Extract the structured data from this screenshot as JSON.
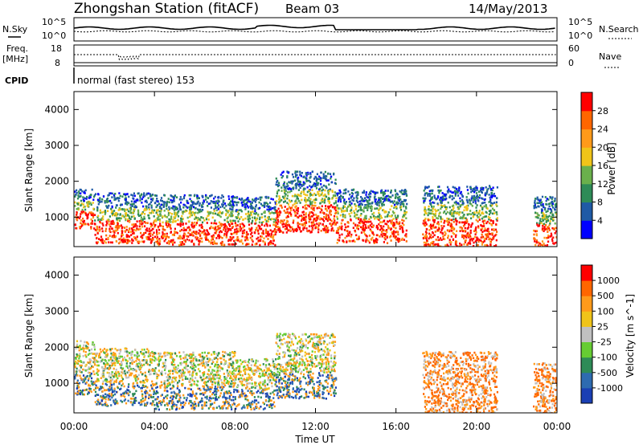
{
  "header": {
    "station": "Zhongshan Station (fitACF)",
    "beam": "Beam 03",
    "date": "14/May/2013"
  },
  "top_panels": {
    "nsky_label": "N.Sky",
    "nsky_top": "10^5",
    "nsky_bottom": "10^0",
    "nsearch_label": "N.Search",
    "nsearch_top": "10^5",
    "nsearch_bottom": "10^0",
    "freq_label": "Freq.",
    "freq_unit": "[MHz]",
    "freq_top": "18",
    "freq_bottom": "8",
    "nave_label": "Nave",
    "nave_top": "60",
    "nave_bottom": "0",
    "cpid_label": "CPID",
    "cpid_text": "normal (fast stereo) 153"
  },
  "chart_data": {
    "type": "heatmap",
    "x": {
      "label": "Time UT",
      "range_hours": [
        0,
        24
      ],
      "tick_hours": [
        0,
        4,
        8,
        12,
        16,
        20,
        24
      ],
      "tick_labels": [
        "00:00",
        "04:00",
        "08:00",
        "12:00",
        "16:00",
        "20:00",
        "00:00"
      ]
    },
    "panels": [
      {
        "name": "power",
        "ylabel": "Slant Range [km]",
        "ylim": [
          180,
          4500
        ],
        "yticks": [
          1000,
          2000,
          3000,
          4000
        ],
        "colorbar_label": "Power [dB]",
        "colorbar_ticks": [
          "4",
          "8",
          "12",
          "16",
          "20",
          "24",
          "28"
        ],
        "colorbar_colors": [
          "#0000ff",
          "#1f5aa6",
          "#2e8b57",
          "#6ab04c",
          "#f0c419",
          "#ff9a1a",
          "#ff6600",
          "#ff0000"
        ],
        "scatter_regions": [
          {
            "t0": 0.0,
            "t1": 1.0,
            "r0": 700,
            "r1": 1800
          },
          {
            "t0": 1.0,
            "t1": 4.0,
            "r0": 300,
            "r1": 1700
          },
          {
            "t0": 4.0,
            "t1": 8.0,
            "r0": 250,
            "r1": 1650
          },
          {
            "t0": 8.0,
            "t1": 10.0,
            "r0": 250,
            "r1": 1600
          },
          {
            "t0": 10.0,
            "t1": 13.0,
            "r0": 600,
            "r1": 2300
          },
          {
            "t0": 13.0,
            "t1": 16.5,
            "r0": 300,
            "r1": 1800
          },
          {
            "t0": 17.3,
            "t1": 21.0,
            "r0": 200,
            "r1": 1900
          },
          {
            "t0": 22.8,
            "t1": 24.0,
            "r0": 200,
            "r1": 1600
          }
        ]
      },
      {
        "name": "velocity",
        "ylabel": "Slant Range [km]",
        "ylim": [
          180,
          4500
        ],
        "yticks": [
          1000,
          2000,
          3000,
          4000
        ],
        "colorbar_label": "Velocity [m s^-1]",
        "colorbar_ticks": [
          "1000",
          "500",
          "100",
          "25",
          "-25",
          "-100",
          "-500",
          "-1000"
        ],
        "colorbar_colors": [
          "#1a3fb4",
          "#2e6bb0",
          "#2e8b57",
          "#66cc33",
          "#c0c0c0",
          "#f0c419",
          "#ff9a1a",
          "#ff6600",
          "#ff0000"
        ],
        "scatter_regions": [
          {
            "t0": 0.0,
            "t1": 1.0,
            "r0": 700,
            "r1": 2200
          },
          {
            "t0": 1.0,
            "t1": 4.0,
            "r0": 400,
            "r1": 2000
          },
          {
            "t0": 4.0,
            "t1": 8.0,
            "r0": 300,
            "r1": 1900
          },
          {
            "t0": 8.0,
            "t1": 10.0,
            "r0": 300,
            "r1": 1700
          },
          {
            "t0": 10.0,
            "t1": 13.0,
            "r0": 600,
            "r1": 2400
          },
          {
            "t0": 17.3,
            "t1": 21.0,
            "r0": 200,
            "r1": 1900
          },
          {
            "t0": 22.8,
            "t1": 24.0,
            "r0": 200,
            "r1": 1600
          }
        ]
      }
    ]
  }
}
